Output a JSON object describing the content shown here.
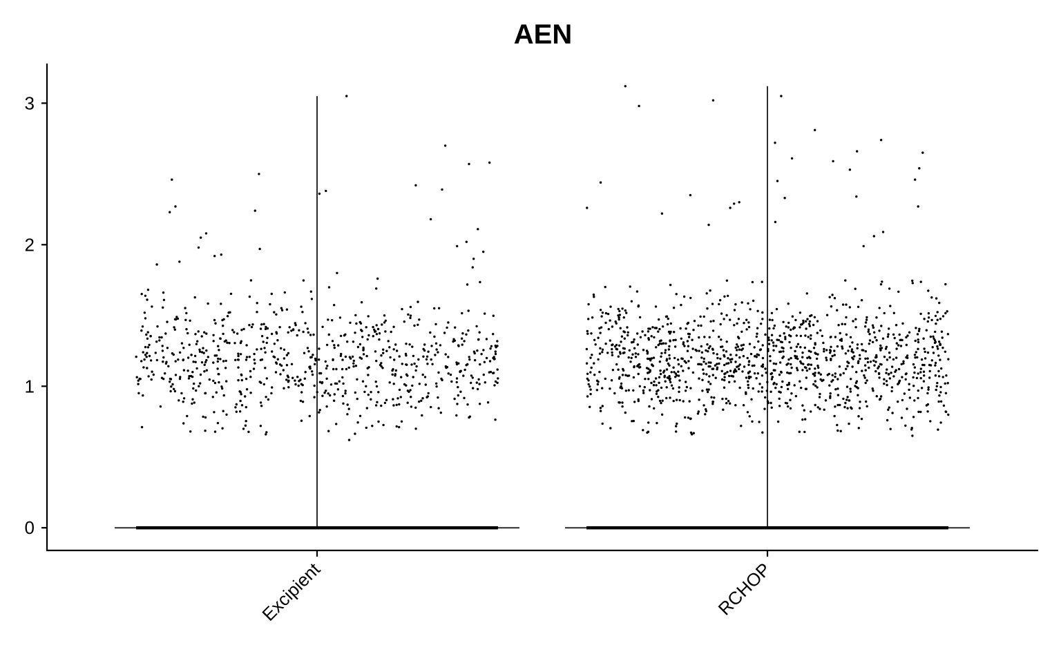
{
  "chart_data": {
    "type": "scatter",
    "subtype": "violin-jitter",
    "title": "AEN",
    "xlabel": "",
    "ylabel": "",
    "categories": [
      "Excipient",
      "RCHOP"
    ],
    "ylim": [
      -0.16,
      3.28
    ],
    "yticks": [
      0,
      1,
      2,
      3
    ],
    "ytick_labels": [
      "0",
      "1",
      "2",
      "3"
    ],
    "grid": false,
    "legend": "none",
    "point_color": "#000000",
    "series": [
      {
        "category": "Excipient",
        "max": 3.05,
        "zero_fraction": 0.85,
        "points_shown": [
          2.24,
          2.5,
          2.42,
          2.39,
          2.58,
          2.46,
          2.36,
          2.18,
          2.08,
          2.57,
          3.05,
          2.38,
          2.27,
          2.7,
          2.23,
          2.11,
          1.99,
          1.97,
          1.93,
          1.88,
          1.84,
          1.9,
          2.02,
          1.95,
          1.86,
          1.92,
          1.8,
          1.98,
          2.05,
          1.76,
          0.82,
          0.78,
          0.74,
          0.72,
          0.7,
          0.68,
          0.66,
          0.75,
          0.62,
          0.8,
          1.12,
          1.25,
          1.4,
          1.05,
          0.95,
          1.3,
          1.18,
          1.55,
          1.08,
          1.45
        ]
      },
      {
        "category": "RCHOP",
        "max": 3.12,
        "zero_fraction": 0.8,
        "points_shown": [
          2.44,
          3.05,
          2.74,
          2.61,
          2.54,
          2.34,
          2.3,
          2.98,
          2.59,
          3.12,
          2.81,
          2.72,
          2.65,
          2.46,
          2.26,
          2.66,
          2.45,
          2.33,
          2.29,
          2.22,
          2.35,
          2.26,
          2.53,
          3.02,
          2.27,
          2.14,
          2.09,
          2.06,
          2.16,
          1.99,
          0.76,
          0.72,
          0.69,
          0.65,
          0.66,
          0.78,
          0.74,
          0.8,
          0.83,
          1.1,
          1.2,
          1.35,
          1.0,
          1.5,
          1.15,
          1.28,
          0.9,
          1.6
        ]
      }
    ]
  }
}
